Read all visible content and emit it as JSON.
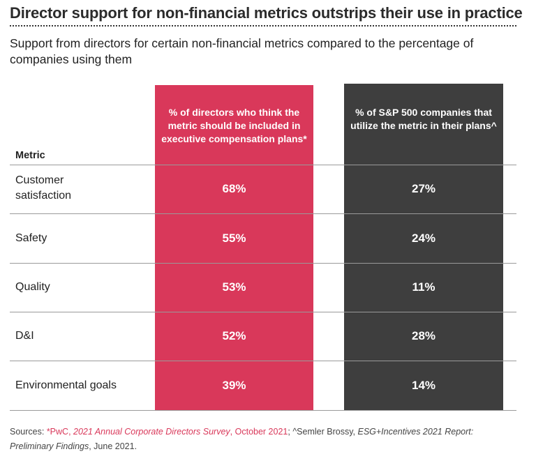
{
  "title": "Director support for non-financial metrics outstrips their use in practice",
  "subtitle": "Support from directors for certain non-financial metrics compared to the percentage of companies using them",
  "colors": {
    "directors": "#d9385a",
    "companies": "#3e3e3e"
  },
  "chart_data": {
    "type": "table",
    "columns": [
      "Metric",
      "% of directors who think the metric should be included in executive compensation plans*",
      "% of S&P 500 companies that utilize the metric in their plans^"
    ],
    "rows": [
      {
        "metric": "Customer satisfaction",
        "directors": "68%",
        "companies": "27%"
      },
      {
        "metric": "Safety",
        "directors": "55%",
        "companies": "24%"
      },
      {
        "metric": "Quality",
        "directors": "53%",
        "companies": "11%"
      },
      {
        "metric": "D&I",
        "directors": "52%",
        "companies": "28%"
      },
      {
        "metric": "Environmental goals",
        "directors": "39%",
        "companies": "14%"
      }
    ]
  },
  "sources": {
    "label": "Sources: ",
    "s1_a": "*PwC, ",
    "s1_b": "2021 Annual Corporate Directors Survey",
    "s1_c": ", October 2021",
    "sep": "; ^Semler Brossy, ",
    "s2_b": "ESG+Incentives 2021 Report: Preliminary Findings",
    "s2_c": ", June 2021."
  }
}
